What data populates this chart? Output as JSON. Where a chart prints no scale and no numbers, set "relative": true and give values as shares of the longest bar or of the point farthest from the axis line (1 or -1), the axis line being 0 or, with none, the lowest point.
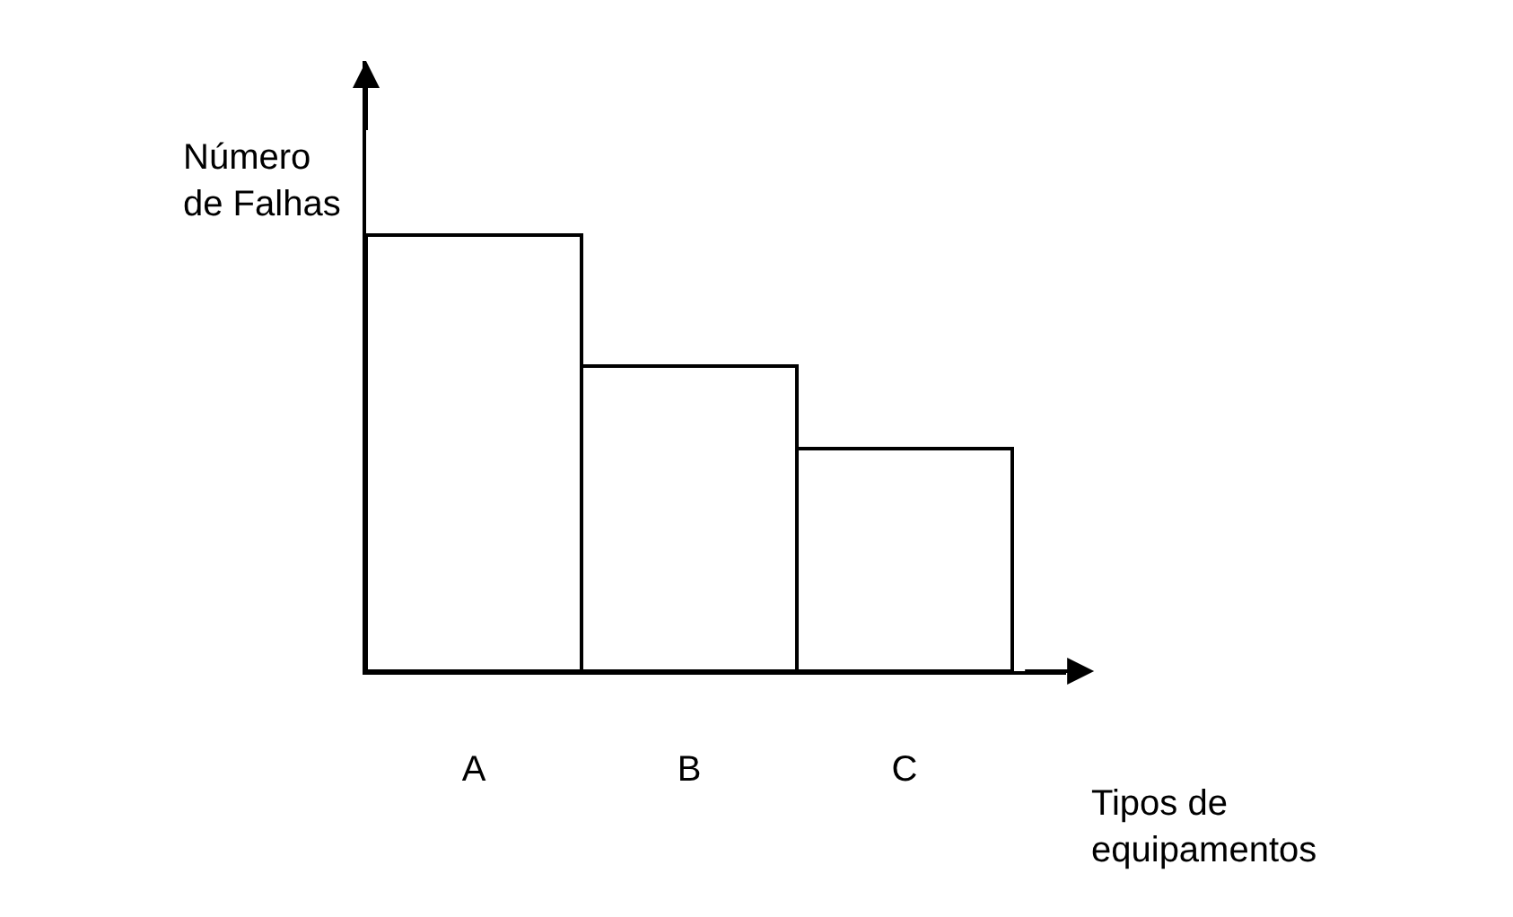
{
  "chart_data": {
    "type": "bar",
    "relative": true,
    "xlabel": "Tipos de\nequipamentos",
    "ylabel": "Número\nde Falhas",
    "categories": [
      "A",
      "B",
      "C"
    ],
    "values": [
      1,
      0.7,
      0.51
    ],
    "color": "#ffffff",
    "legend": false
  }
}
